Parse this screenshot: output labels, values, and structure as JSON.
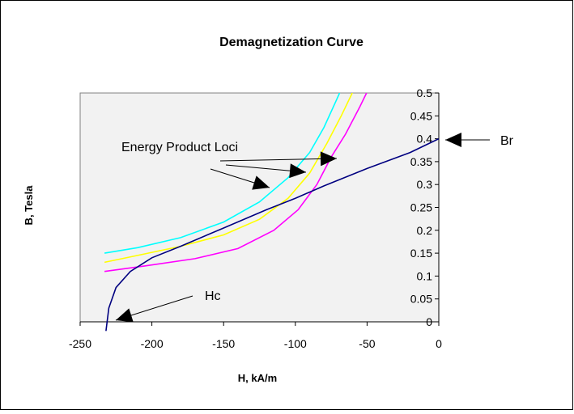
{
  "chart_data": {
    "type": "line",
    "title": "Demagnetization Curve",
    "xlabel": "H, kA/m",
    "ylabel": "B, Tesla",
    "xlim": [
      -250,
      0
    ],
    "ylim": [
      0,
      0.5
    ],
    "x_ticks": [
      "-250",
      "-200",
      "-150",
      "-100",
      "-50",
      "0"
    ],
    "y_ticks": [
      "0",
      "0.05",
      "0.1",
      "0.15",
      "0.2",
      "0.25",
      "0.3",
      "0.35",
      "0.4",
      "0.45",
      "0.5"
    ],
    "plot_background": "#f2f2f2",
    "grid": false,
    "series": [
      {
        "color": "#00ffff",
        "points": [
          [
            -233,
            0.15
          ],
          [
            -210,
            0.162
          ],
          [
            -180,
            0.184
          ],
          [
            -150,
            0.218
          ],
          [
            -125,
            0.262
          ],
          [
            -105,
            0.315
          ],
          [
            -90,
            0.37
          ],
          [
            -80,
            0.425
          ],
          [
            -72,
            0.48
          ],
          [
            -67,
            0.515
          ]
        ]
      },
      {
        "color": "#ffff00",
        "points": [
          [
            -233,
            0.13
          ],
          [
            -210,
            0.145
          ],
          [
            -180,
            0.165
          ],
          [
            -150,
            0.19
          ],
          [
            -125,
            0.224
          ],
          [
            -105,
            0.27
          ],
          [
            -90,
            0.325
          ],
          [
            -78,
            0.39
          ],
          [
            -68,
            0.45
          ],
          [
            -58,
            0.515
          ]
        ]
      },
      {
        "color": "#ff00ff",
        "points": [
          [
            -233,
            0.11
          ],
          [
            -205,
            0.122
          ],
          [
            -170,
            0.138
          ],
          [
            -140,
            0.16
          ],
          [
            -115,
            0.2
          ],
          [
            -98,
            0.245
          ],
          [
            -85,
            0.3
          ],
          [
            -75,
            0.36
          ],
          [
            -65,
            0.41
          ],
          [
            -55,
            0.47
          ],
          [
            -48,
            0.515
          ]
        ]
      },
      {
        "color": "#000080",
        "points": [
          [
            -232,
            -0.02
          ],
          [
            -230,
            0.03
          ],
          [
            -225,
            0.075
          ],
          [
            -215,
            0.11
          ],
          [
            -200,
            0.14
          ],
          [
            -180,
            0.165
          ],
          [
            -150,
            0.205
          ],
          [
            -120,
            0.245
          ],
          [
            -100,
            0.27
          ],
          [
            -80,
            0.297
          ],
          [
            -50,
            0.335
          ],
          [
            -20,
            0.37
          ],
          [
            0,
            0.4
          ]
        ]
      }
    ],
    "annotations": [
      {
        "text": "Energy Product Loci"
      },
      {
        "text": "Br"
      },
      {
        "text": "Hc"
      }
    ]
  }
}
